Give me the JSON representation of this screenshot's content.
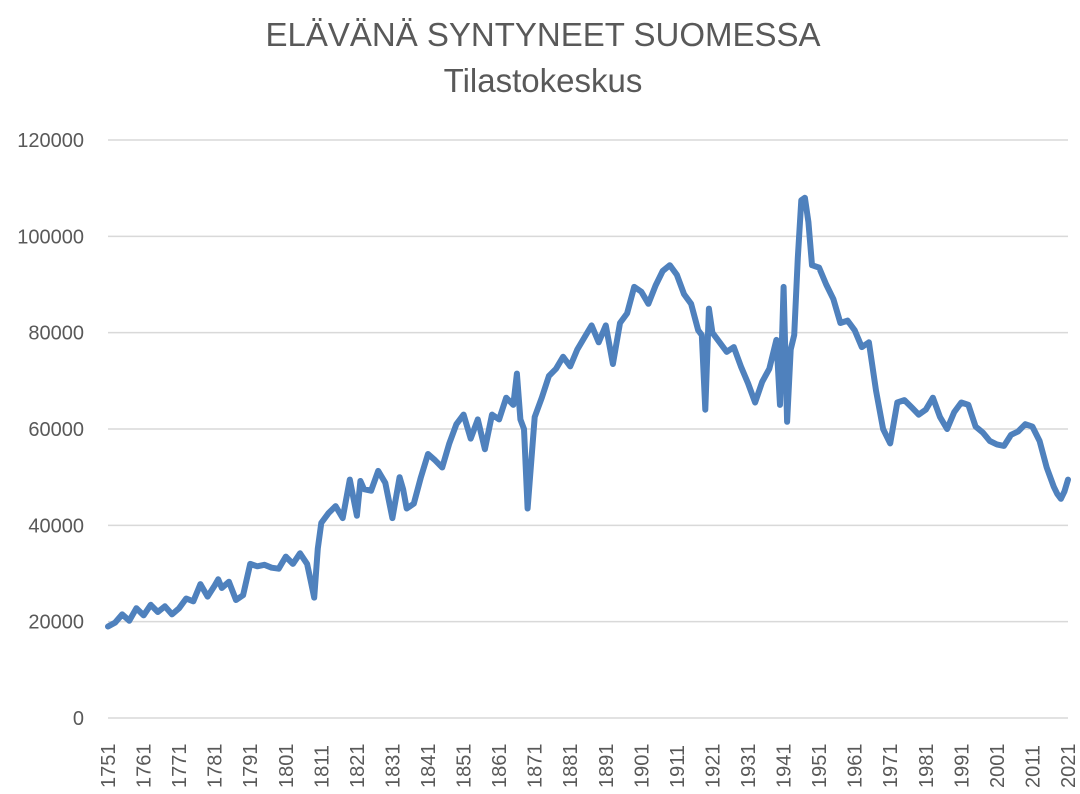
{
  "chart_data": {
    "type": "line",
    "title": "ELÄVÄNÄ SYNTYNEET SUOMESSA",
    "subtitle": "Tilastokeskus",
    "xlabel": "",
    "ylabel": "",
    "ylim": [
      0,
      120000
    ],
    "y_ticks": [
      "0",
      "20000",
      "40000",
      "60000",
      "80000",
      "100000",
      "120000"
    ],
    "x_ticks": [
      "1751",
      "1761",
      "1771",
      "1781",
      "1791",
      "1801",
      "1811",
      "1821",
      "1831",
      "1841",
      "1851",
      "1861",
      "1871",
      "1881",
      "1891",
      "1901",
      "1911",
      "1921",
      "1931",
      "1941",
      "1951",
      "1961",
      "1971",
      "1981",
      "1991",
      "2001",
      "2011",
      "2021"
    ],
    "xlim": [
      1751,
      2021
    ],
    "grid": "horizontal",
    "legend": "none",
    "series_color": "#4f81bd",
    "series": [
      {
        "x": [
          1751,
          1753,
          1755,
          1757,
          1759,
          1761,
          1763,
          1765,
          1767,
          1769,
          1771,
          1773,
          1775,
          1777,
          1779,
          1781,
          1782,
          1783,
          1785,
          1787,
          1789,
          1791,
          1793,
          1795,
          1797,
          1799,
          1801,
          1803,
          1805,
          1807,
          1808,
          1809,
          1810,
          1811,
          1813,
          1815,
          1817,
          1819,
          1821,
          1822,
          1823,
          1825,
          1827,
          1829,
          1831,
          1833,
          1834,
          1835,
          1837,
          1839,
          1841,
          1843,
          1845,
          1847,
          1849,
          1851,
          1853,
          1855,
          1857,
          1859,
          1861,
          1863,
          1865,
          1866,
          1867,
          1868,
          1869,
          1871,
          1873,
          1875,
          1877,
          1879,
          1881,
          1883,
          1885,
          1887,
          1889,
          1891,
          1893,
          1895,
          1897,
          1899,
          1901,
          1903,
          1905,
          1907,
          1909,
          1911,
          1913,
          1915,
          1917,
          1918,
          1919,
          1920,
          1921,
          1923,
          1925,
          1927,
          1929,
          1931,
          1933,
          1935,
          1937,
          1939,
          1940,
          1941,
          1942,
          1943,
          1944,
          1945,
          1946,
          1947,
          1948,
          1949,
          1951,
          1953,
          1955,
          1957,
          1959,
          1961,
          1963,
          1965,
          1967,
          1969,
          1971,
          1973,
          1975,
          1977,
          1979,
          1981,
          1983,
          1985,
          1987,
          1989,
          1991,
          1993,
          1995,
          1997,
          1999,
          2001,
          2003,
          2005,
          2007,
          2009,
          2011,
          2013,
          2015,
          2017,
          2018,
          2019,
          2020,
          2021
        ],
        "y": [
          19000,
          19800,
          21500,
          20200,
          22800,
          21300,
          23500,
          22000,
          23200,
          21500,
          22800,
          24800,
          24200,
          27800,
          25200,
          27500,
          28800,
          27000,
          28300,
          24500,
          25500,
          32000,
          31500,
          31800,
          31200,
          31000,
          33500,
          32000,
          34200,
          32000,
          28500,
          25000,
          35200,
          40500,
          42500,
          44000,
          41500,
          49500,
          42000,
          49200,
          47500,
          47200,
          51300,
          48800,
          41500,
          50000,
          47500,
          43500,
          44500,
          50000,
          54800,
          53500,
          52000,
          57000,
          61000,
          63000,
          58000,
          62000,
          55800,
          63000,
          62000,
          66500,
          65000,
          71500,
          62000,
          60000,
          43500,
          62500,
          66500,
          71000,
          72500,
          75000,
          73000,
          76500,
          79000,
          81500,
          78000,
          81500,
          73500,
          82000,
          84000,
          89500,
          88500,
          86000,
          89800,
          92800,
          94000,
          92000,
          88000,
          86000,
          80500,
          79500,
          64000,
          85000,
          80000,
          78000,
          76000,
          77000,
          73000,
          69500,
          65500,
          69800,
          72500,
          78500,
          65000,
          89500,
          61500,
          76500,
          79500,
          95500,
          107500,
          108000,
          103000,
          94000,
          93500,
          90000,
          87000,
          82000,
          82500,
          80500,
          77000,
          78000,
          68000,
          60000,
          57000,
          65500,
          66000,
          64500,
          63000,
          64000,
          66500,
          62500,
          60000,
          63500,
          65500,
          65000,
          60500,
          59300,
          57500,
          56800,
          56500,
          58800,
          59500,
          61000,
          60500,
          57500,
          52000,
          48000,
          46500,
          45500,
          47000,
          49500
        ]
      }
    ]
  }
}
